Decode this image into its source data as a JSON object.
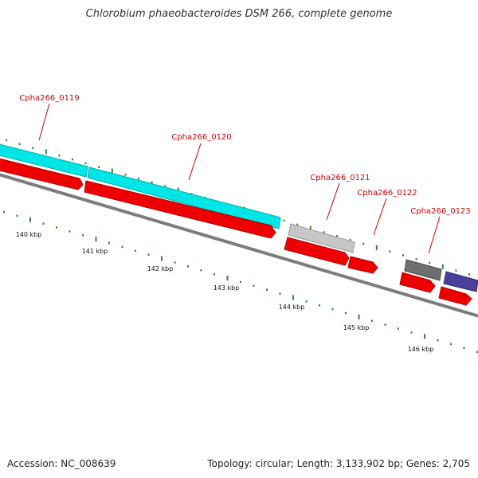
{
  "title": "Chlorobium phaeobacteroides DSM 266, complete genome",
  "footer": {
    "accession": "Accession: NC_008639",
    "stats": "Topology: circular; Length: 3,133,902 bp; Genes: 2,705"
  },
  "colors": {
    "cds": "#ee0000",
    "cog_cyan": "#00e5e5",
    "cog_lightgray": "#c4c4c4",
    "cog_darkgray": "#6e6e6e",
    "cog_purple": "#4a3f9a",
    "backbone": "#8a8a8a",
    "tick": "#2a8a2a",
    "label": "#cc0000"
  },
  "genes": [
    {
      "id": "Cpha266_0119"
    },
    {
      "id": "Cpha266_0120"
    },
    {
      "id": "Cpha266_0121"
    },
    {
      "id": "Cpha266_0122"
    },
    {
      "id": "Cpha266_0123"
    }
  ],
  "scale_labels": [
    "140 kbp",
    "141 kbp",
    "142 kbp",
    "143 kbp",
    "144 kbp",
    "145 kbp",
    "146 kbp"
  ]
}
